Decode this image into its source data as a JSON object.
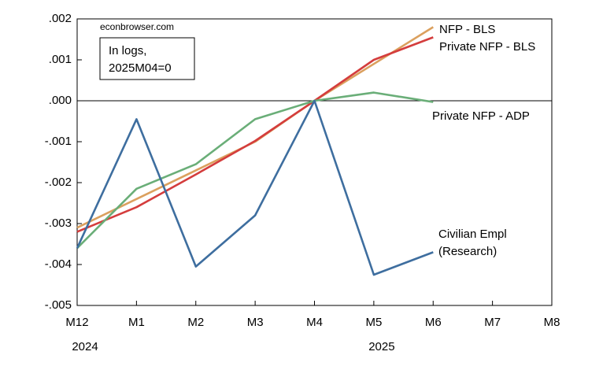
{
  "chart_data": {
    "type": "line",
    "source": "econbrowser.com",
    "note": [
      "In logs,",
      "2025M04=0"
    ],
    "categories": [
      "M12",
      "M1",
      "M2",
      "M3",
      "M4",
      "M5",
      "M6",
      "M7",
      "M8"
    ],
    "year_labels": [
      {
        "index": 0,
        "label": "2024"
      },
      {
        "index": 5,
        "label": "2025"
      }
    ],
    "ylim": [
      -0.005,
      0.002
    ],
    "yticks": [
      {
        "value": 0.002,
        "label": ".002"
      },
      {
        "value": 0.001,
        "label": ".001"
      },
      {
        "value": 0,
        "label": ".000"
      },
      {
        "value": -0.001,
        "label": "-.001"
      },
      {
        "value": -0.002,
        "label": "-.002"
      },
      {
        "value": -0.003,
        "label": "-.003"
      },
      {
        "value": -0.004,
        "label": "-.004"
      },
      {
        "value": -0.005,
        "label": "-.005"
      }
    ],
    "grid": false,
    "series": [
      {
        "name": "NFP - BLS",
        "color": "#dba05e",
        "values": [
          -0.0031,
          -0.0024,
          -0.0017,
          -0.001,
          0,
          0.0009,
          0.0018,
          null,
          null
        ]
      },
      {
        "name": "Private NFP - BLS",
        "color": "#d43d3d",
        "values": [
          -0.0032,
          -0.0026,
          -0.0018,
          -0.00098,
          0,
          0.001,
          0.00155,
          null,
          null
        ]
      },
      {
        "name": "Private NFP - ADP",
        "color": "#6aae78",
        "values": [
          -0.0036,
          -0.00215,
          -0.00155,
          -0.00045,
          0,
          0.0002,
          -3e-05,
          null,
          null
        ]
      },
      {
        "name": "Civilian Empl (Research)",
        "color": "#3e6e9f",
        "values": [
          -0.0036,
          -0.00045,
          -0.00405,
          -0.0028,
          0,
          -0.00425,
          -0.0037,
          null,
          null
        ]
      }
    ]
  }
}
